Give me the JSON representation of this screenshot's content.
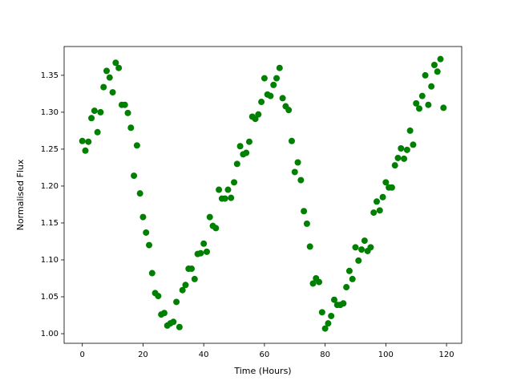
{
  "chart_data": {
    "type": "scatter",
    "x_label": "Time (Hours)",
    "y_label": "Normalised Flux",
    "color": "#008000",
    "grid": false,
    "xlim": [
      -6,
      125
    ],
    "ylim": [
      0.987,
      1.389
    ],
    "xticks": [
      0,
      20,
      40,
      60,
      80,
      100,
      120
    ],
    "yticks": [
      {
        "value": 1.0,
        "label": "1.00"
      },
      {
        "value": 1.05,
        "label": "1.05"
      },
      {
        "value": 1.1,
        "label": "1.10"
      },
      {
        "value": 1.15,
        "label": "1.15"
      },
      {
        "value": 1.2,
        "label": "1.20"
      },
      {
        "value": 1.25,
        "label": "1.25"
      },
      {
        "value": 1.3,
        "label": "1.30"
      },
      {
        "value": 1.35,
        "label": "1.35"
      }
    ],
    "x": [
      0,
      1,
      2,
      3,
      4,
      5,
      6,
      7,
      8,
      9,
      10,
      11,
      12,
      13,
      14,
      15,
      16,
      17,
      18,
      19,
      20,
      21,
      22,
      23,
      24,
      25,
      26,
      27,
      28,
      29,
      30,
      31,
      32,
      33,
      34,
      35,
      36,
      37,
      38,
      39,
      40,
      41,
      42,
      43,
      44,
      45,
      46,
      47,
      48,
      49,
      50,
      51,
      52,
      53,
      54,
      55,
      56,
      57,
      58,
      59,
      60,
      61,
      62,
      63,
      64,
      65,
      66,
      67,
      68,
      69,
      70,
      71,
      72,
      73,
      74,
      75,
      76,
      77,
      78,
      79,
      80,
      81,
      82,
      83,
      84,
      85,
      86,
      87,
      88,
      89,
      90,
      91,
      92,
      93,
      94,
      95,
      96,
      97,
      98,
      99,
      100,
      101,
      102,
      103,
      104,
      105,
      106,
      107,
      108,
      109,
      110,
      111,
      112,
      113,
      114,
      115,
      116,
      117,
      118,
      119
    ],
    "values": [
      1.261,
      1.248,
      1.26,
      1.292,
      1.302,
      1.273,
      1.3,
      1.334,
      1.356,
      1.347,
      1.327,
      1.367,
      1.36,
      1.31,
      1.31,
      1.299,
      1.279,
      1.214,
      1.255,
      1.19,
      1.158,
      1.137,
      1.12,
      1.082,
      1.055,
      1.051,
      1.026,
      1.028,
      1.011,
      1.014,
      1.016,
      1.043,
      1.009,
      1.059,
      1.066,
      1.088,
      1.088,
      1.074,
      1.108,
      1.109,
      1.122,
      1.111,
      1.158,
      1.146,
      1.143,
      1.195,
      1.183,
      1.183,
      1.195,
      1.184,
      1.205,
      1.23,
      1.254,
      1.243,
      1.245,
      1.26,
      1.294,
      1.291,
      1.297,
      1.314,
      1.346,
      1.324,
      1.322,
      1.337,
      1.346,
      1.36,
      1.319,
      1.308,
      1.303,
      1.261,
      1.219,
      1.232,
      1.208,
      1.166,
      1.149,
      1.118,
      1.068,
      1.075,
      1.07,
      1.029,
      1.007,
      1.014,
      1.024,
      1.046,
      1.039,
      1.039,
      1.041,
      1.063,
      1.085,
      1.074,
      1.117,
      1.099,
      1.114,
      1.126,
      1.112,
      1.117,
      1.164,
      1.179,
      1.167,
      1.185,
      1.205,
      1.198,
      1.198,
      1.228,
      1.238,
      1.251,
      1.237,
      1.249,
      1.275,
      1.256,
      1.312,
      1.305,
      1.322,
      1.35,
      1.31,
      1.335,
      1.364,
      1.355,
      1.372,
      1.306
    ]
  }
}
